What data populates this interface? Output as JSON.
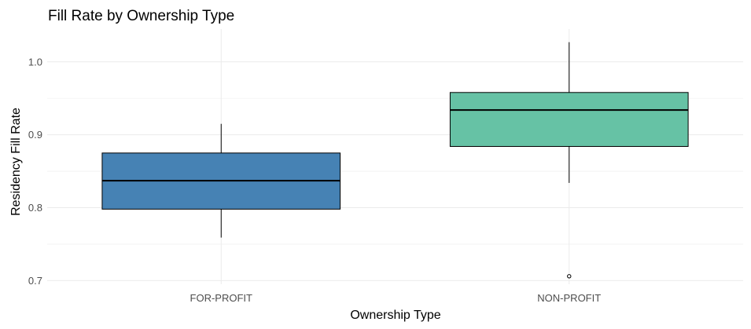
{
  "chart_data": {
    "type": "boxplot",
    "title": "Fill Rate by Ownership Type",
    "xlabel": "Ownership Type",
    "ylabel": "Residency Fill Rate",
    "ylim": [
      0.695,
      1.045
    ],
    "y_ticks": [
      0.7,
      0.8,
      0.9,
      1.0
    ],
    "y_tick_labels": [
      "0.7",
      "0.8",
      "0.9",
      "1.0"
    ],
    "grid": true,
    "legend": "none",
    "categories": [
      "FOR-PROFIT",
      "NON-PROFIT"
    ],
    "boxes": [
      {
        "category": "FOR-PROFIT",
        "whisker_low": 0.759,
        "q1": 0.798,
        "median": 0.837,
        "q3": 0.875,
        "whisker_high": 0.915,
        "outliers": [],
        "color": "#4682b4"
      },
      {
        "category": "NON-PROFIT",
        "whisker_low": 0.834,
        "q1": 0.884,
        "median": 0.934,
        "q3": 0.958,
        "whisker_high": 1.027,
        "outliers": [
          0.706
        ],
        "color": "#66c2a5"
      }
    ]
  }
}
